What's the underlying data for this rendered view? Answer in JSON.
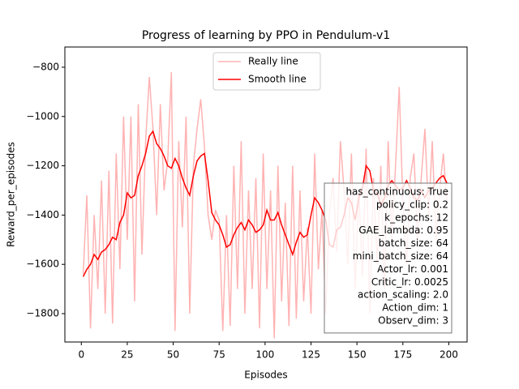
{
  "chart_data": {
    "type": "line",
    "title": "Progress of learning by PPO in Pendulum-v1",
    "xlabel": "Episodes",
    "ylabel": "Reward_per_episodes",
    "x": [
      1,
      3,
      5,
      7,
      9,
      11,
      13,
      15,
      17,
      19,
      21,
      23,
      25,
      27,
      29,
      31,
      33,
      35,
      37,
      39,
      41,
      43,
      45,
      47,
      49,
      51,
      53,
      55,
      57,
      59,
      61,
      63,
      65,
      67,
      69,
      71,
      73,
      75,
      77,
      79,
      81,
      83,
      85,
      87,
      89,
      91,
      93,
      95,
      97,
      99,
      101,
      103,
      105,
      107,
      109,
      111,
      113,
      115,
      117,
      119,
      121,
      123,
      125,
      127,
      129,
      131,
      133,
      135,
      137,
      139,
      141,
      143,
      145,
      147,
      149,
      151,
      153,
      155,
      157,
      159,
      161,
      163,
      165,
      167,
      169,
      171,
      173,
      175,
      177,
      179,
      181,
      183,
      185,
      187,
      189,
      191,
      193,
      195,
      197,
      199
    ],
    "series": [
      {
        "name": "Really line",
        "color": "#ffb3b3",
        "values": [
          -1640,
          -1320,
          -1860,
          -1400,
          -1700,
          -1260,
          -1800,
          -1220,
          -1840,
          -1150,
          -1620,
          -1000,
          -1500,
          -1000,
          -1750,
          -950,
          -1560,
          -1100,
          -840,
          -1050,
          -1400,
          -950,
          -1300,
          -1180,
          -820,
          -1870,
          -1100,
          -1450,
          -1000,
          -1800,
          -1200,
          -1050,
          -930,
          -1120,
          -1400,
          -1500,
          -1380,
          -1420,
          -1870,
          -1400,
          -1850,
          -1200,
          -1700,
          -1100,
          -1800,
          -1300,
          -1700,
          -1250,
          -1860,
          -1150,
          -1700,
          -1300,
          -1900,
          -1200,
          -1750,
          -1350,
          -1850,
          -1200,
          -1820,
          -1300,
          -1750,
          -1450,
          -1800,
          -1150,
          -1620,
          -1380,
          -1800,
          -1400,
          -1250,
          -1550,
          -1100,
          -1300,
          -1600,
          -1150,
          -1700,
          -1300,
          -1650,
          -1130,
          -1800,
          -1250,
          -1600,
          -1200,
          -1700,
          -1100,
          -1500,
          -1200,
          -880,
          -1350,
          -1600,
          -1250,
          -1150,
          -1500,
          -1250,
          -1050,
          -1400,
          -1100,
          -1500,
          -1300,
          -1150,
          -1350
        ]
      },
      {
        "name": "Smooth line",
        "color": "#ff0000",
        "values": [
          -1650,
          -1620,
          -1600,
          -1560,
          -1580,
          -1550,
          -1540,
          -1520,
          -1490,
          -1500,
          -1430,
          -1400,
          -1310,
          -1330,
          -1320,
          -1240,
          -1200,
          -1150,
          -1080,
          -1060,
          -1110,
          -1130,
          -1160,
          -1200,
          -1210,
          -1170,
          -1200,
          -1250,
          -1290,
          -1320,
          -1240,
          -1180,
          -1160,
          -1150,
          -1260,
          -1390,
          -1420,
          -1440,
          -1480,
          -1530,
          -1520,
          -1480,
          -1450,
          -1430,
          -1460,
          -1420,
          -1440,
          -1470,
          -1460,
          -1440,
          -1380,
          -1420,
          -1420,
          -1390,
          -1440,
          -1480,
          -1520,
          -1560,
          -1510,
          -1470,
          -1490,
          -1480,
          -1400,
          -1330,
          -1350,
          -1380,
          -1420,
          -1520,
          -1530,
          -1460,
          -1450,
          -1400,
          -1330,
          -1350,
          -1420,
          -1330,
          -1290,
          -1200,
          -1220,
          -1300,
          -1310,
          -1360,
          -1330,
          -1280,
          -1260,
          -1280,
          -1300,
          -1290,
          -1260,
          -1290,
          -1330,
          -1340,
          -1300,
          -1330,
          -1300,
          -1290,
          -1270,
          -1250,
          -1240,
          -1270
        ]
      }
    ],
    "xlim": [
      -8.95,
      209.95
    ],
    "xticks": [
      0,
      25,
      50,
      75,
      100,
      125,
      150,
      175,
      200
    ],
    "ylim": [
      -1915,
      -718
    ],
    "yticks": [
      {
        "value": -1800,
        "label": "−1800"
      },
      {
        "value": -1600,
        "label": "−1600"
      },
      {
        "value": -1400,
        "label": "−1400"
      },
      {
        "value": -1200,
        "label": "−1200"
      },
      {
        "value": -1000,
        "label": "−1000"
      },
      {
        "value": -800,
        "label": "−800"
      }
    ],
    "legend": "upper center",
    "annotation": [
      "has_continuous: True",
      "policy_clip: 0.2",
      "k_epochs: 12",
      "GAE_lambda: 0.95",
      "batch_size: 64",
      "mini_batch_size: 64",
      "Actor_lr: 0.001",
      "Critic_lr: 0.0025",
      "action_scaling: 2.0",
      "Action_dim: 1",
      "Observ_dim: 3"
    ]
  }
}
